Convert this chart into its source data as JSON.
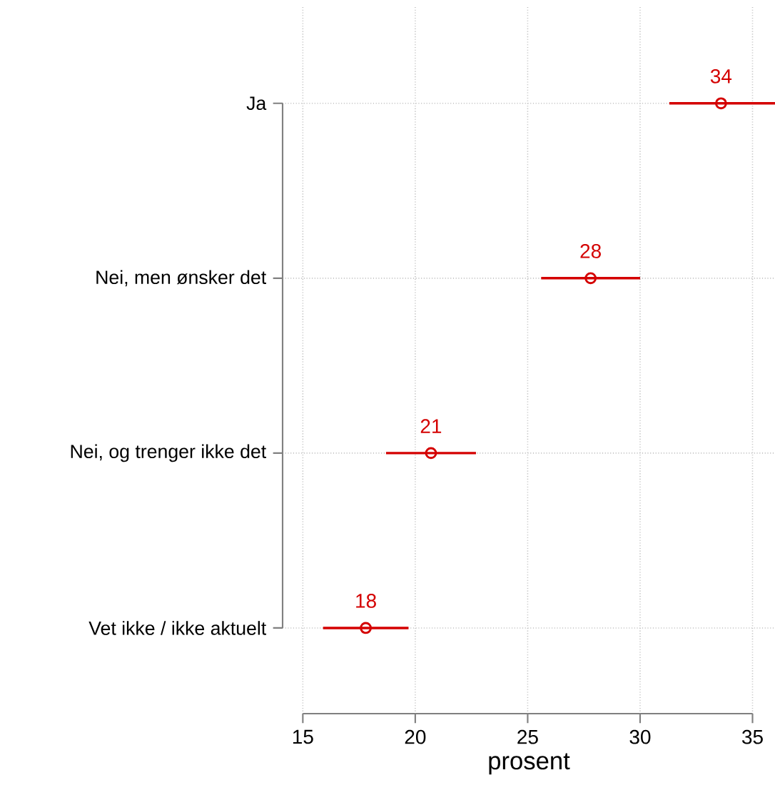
{
  "chart_data": {
    "type": "scatter",
    "xlabel": "prosent",
    "categories": [
      "Ja",
      "Nei, men ønsker det",
      "Nei, og trenger ikke det",
      "Vet ikke / ikke aktuelt"
    ],
    "orientation": "horizontal",
    "values": [
      33.6,
      27.8,
      20.7,
      17.8
    ],
    "errors": [
      [
        31.3,
        36.0
      ],
      [
        25.6,
        30.0
      ],
      [
        18.7,
        22.7
      ],
      [
        15.9,
        19.7
      ]
    ],
    "value_labels": [
      "34",
      "28",
      "21",
      "18"
    ],
    "color": "#d40000",
    "marker": "circle",
    "grid": true,
    "xlim": [
      14.1,
      36.0
    ],
    "xticks": [
      15,
      20,
      25,
      30,
      35
    ]
  }
}
